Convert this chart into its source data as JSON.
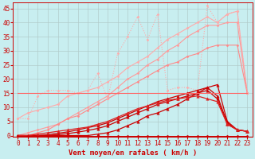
{
  "background_color": "#c8eef0",
  "grid_color": "#b0c8c8",
  "xlabel": "Vent moyen/en rafales ( km/h )",
  "xlabel_color": "#cc0000",
  "xlabel_fontsize": 6.5,
  "xticks": [
    0,
    1,
    2,
    3,
    4,
    5,
    6,
    7,
    8,
    9,
    10,
    11,
    12,
    13,
    14,
    15,
    16,
    17,
    18,
    19,
    20,
    21,
    22,
    23
  ],
  "yticks": [
    0,
    5,
    10,
    15,
    20,
    25,
    30,
    35,
    40,
    45
  ],
  "tick_color": "#cc0000",
  "tick_fontsize": 5.5,
  "series": [
    {
      "x": [
        0,
        1,
        2,
        3,
        4,
        5,
        6,
        7,
        8,
        9,
        10,
        11,
        12,
        13,
        14,
        15,
        16,
        17,
        18,
        19,
        20,
        21,
        22,
        23
      ],
      "y": [
        6,
        8,
        9,
        10,
        11,
        14,
        15,
        16,
        17,
        19,
        21,
        24,
        26,
        28,
        31,
        34,
        36,
        38,
        40,
        42,
        40,
        43,
        44,
        15
      ],
      "color": "#ffaaaa",
      "linewidth": 0.8,
      "marker": "D",
      "markersize": 1.5,
      "linestyle": "-"
    },
    {
      "x": [
        0,
        1,
        2,
        3,
        4,
        5,
        6,
        7,
        8,
        9,
        10,
        11,
        12,
        13,
        14,
        15,
        16,
        17,
        18,
        19,
        20,
        21,
        22,
        23
      ],
      "y": [
        0,
        1,
        2,
        3,
        4,
        6,
        8,
        10,
        12,
        14,
        17,
        20,
        22,
        25,
        27,
        30,
        32,
        35,
        37,
        39,
        39,
        40,
        40,
        15
      ],
      "color": "#ff9999",
      "linewidth": 0.8,
      "marker": "D",
      "markersize": 1.5,
      "linestyle": "-"
    },
    {
      "x": [
        0,
        1,
        2,
        3,
        4,
        5,
        6,
        7,
        8,
        9,
        10,
        11,
        12,
        13,
        14,
        15,
        16,
        17,
        18,
        19,
        20,
        21,
        22,
        23
      ],
      "y": [
        0,
        0,
        1,
        2,
        4,
        6,
        7,
        9,
        11,
        13,
        15,
        17,
        19,
        21,
        23,
        25,
        26,
        28,
        29,
        31,
        32,
        32,
        32,
        15
      ],
      "color": "#ff8888",
      "linewidth": 0.8,
      "marker": "D",
      "markersize": 1.5,
      "linestyle": "-"
    },
    {
      "comment": "noisy pink dotted line - 6,6,14,16,16,16,15,16,22,13,29,35,42,34,43,16,17,17,16,46,40,43,44,15",
      "x": [
        0,
        1,
        2,
        3,
        4,
        5,
        6,
        7,
        8,
        9,
        10,
        11,
        12,
        13,
        14,
        15,
        16,
        17,
        18,
        19,
        20,
        21,
        22,
        23
      ],
      "y": [
        6,
        6,
        14,
        16,
        16,
        16,
        15,
        16,
        22,
        13,
        29,
        35,
        42,
        34,
        43,
        16,
        17,
        17,
        16,
        46,
        40,
        43,
        44,
        15
      ],
      "color": "#ffaaaa",
      "linewidth": 0.8,
      "marker": "D",
      "markersize": 1.5,
      "linestyle": ":"
    },
    {
      "x": [
        0,
        1,
        2,
        3,
        4,
        5,
        6,
        7,
        8,
        9,
        10,
        11,
        12,
        13,
        14,
        15,
        16,
        17,
        18,
        19,
        20,
        21,
        22,
        23
      ],
      "y": [
        0,
        0,
        0,
        0,
        0,
        0,
        0,
        0,
        0.5,
        1,
        2,
        3.5,
        5,
        7,
        8,
        9.5,
        11,
        13,
        15,
        17,
        18,
        5,
        2,
        1.5
      ],
      "color": "#cc0000",
      "linewidth": 0.9,
      "marker": "^",
      "markersize": 2.5,
      "linestyle": "-"
    },
    {
      "x": [
        0,
        1,
        2,
        3,
        4,
        5,
        6,
        7,
        8,
        9,
        10,
        11,
        12,
        13,
        14,
        15,
        16,
        17,
        18,
        19,
        20,
        21,
        22,
        23
      ],
      "y": [
        0,
        0,
        0,
        0,
        0.3,
        0.7,
        1.2,
        1.8,
        2.5,
        3.5,
        5,
        6.5,
        8,
        9.5,
        11,
        12,
        13,
        14,
        15,
        16,
        13,
        4,
        2,
        1.5
      ],
      "color": "#cc0000",
      "linewidth": 0.9,
      "marker": "^",
      "markersize": 2.5,
      "linestyle": "-"
    },
    {
      "x": [
        0,
        1,
        2,
        3,
        4,
        5,
        6,
        7,
        8,
        9,
        10,
        11,
        12,
        13,
        14,
        15,
        16,
        17,
        18,
        19,
        20,
        21,
        22,
        23
      ],
      "y": [
        0,
        0,
        0,
        0.3,
        0.8,
        1.3,
        2,
        2.8,
        3.5,
        4.5,
        6,
        7.5,
        9,
        10.5,
        12,
        13,
        14,
        15,
        16,
        17,
        14,
        4.5,
        2,
        1.5
      ],
      "color": "#cc0000",
      "linewidth": 0.9,
      "marker": "^",
      "markersize": 2.5,
      "linestyle": "-"
    },
    {
      "x": [
        0,
        1,
        2,
        3,
        4,
        5,
        6,
        7,
        8,
        9,
        10,
        11,
        12,
        13,
        14,
        15,
        16,
        17,
        18,
        19,
        20,
        21,
        22,
        23
      ],
      "y": [
        0,
        0,
        0.5,
        1,
        1.5,
        2,
        2.5,
        3,
        4,
        5,
        6.5,
        8,
        9.5,
        10.5,
        11.5,
        12.5,
        13,
        13.5,
        14,
        13,
        12,
        4,
        2,
        1.5
      ],
      "color": "#dd2222",
      "linewidth": 0.9,
      "marker": "^",
      "markersize": 2.5,
      "linestyle": "-"
    },
    {
      "x": [
        0,
        1,
        2,
        3,
        4,
        5,
        6,
        7,
        8,
        9,
        10,
        11,
        12,
        13,
        14,
        15,
        16,
        17,
        18,
        19,
        20,
        21,
        22,
        23
      ],
      "y": [
        15,
        15,
        15,
        15,
        15,
        15,
        15,
        15,
        15,
        15,
        15,
        15,
        15,
        15,
        15,
        15,
        15,
        15,
        15,
        15,
        15,
        15,
        15,
        15
      ],
      "color": "#ff6666",
      "linewidth": 0.8,
      "marker": null,
      "markersize": 0,
      "linestyle": "-"
    },
    {
      "x": [
        0,
        1,
        2,
        3,
        4,
        5,
        6,
        7,
        8,
        9,
        10,
        11,
        12,
        13,
        14,
        15,
        16,
        17,
        18,
        19,
        20,
        21,
        22,
        23
      ],
      "y": [
        0,
        0,
        0,
        0,
        0,
        0,
        0,
        0,
        0,
        0,
        0,
        0,
        0,
        0,
        0,
        0,
        0,
        0,
        0,
        0,
        0,
        0,
        0,
        0
      ],
      "color": "#cc0000",
      "linewidth": 0.7,
      "marker": "D",
      "markersize": 1.5,
      "linestyle": "-"
    }
  ]
}
